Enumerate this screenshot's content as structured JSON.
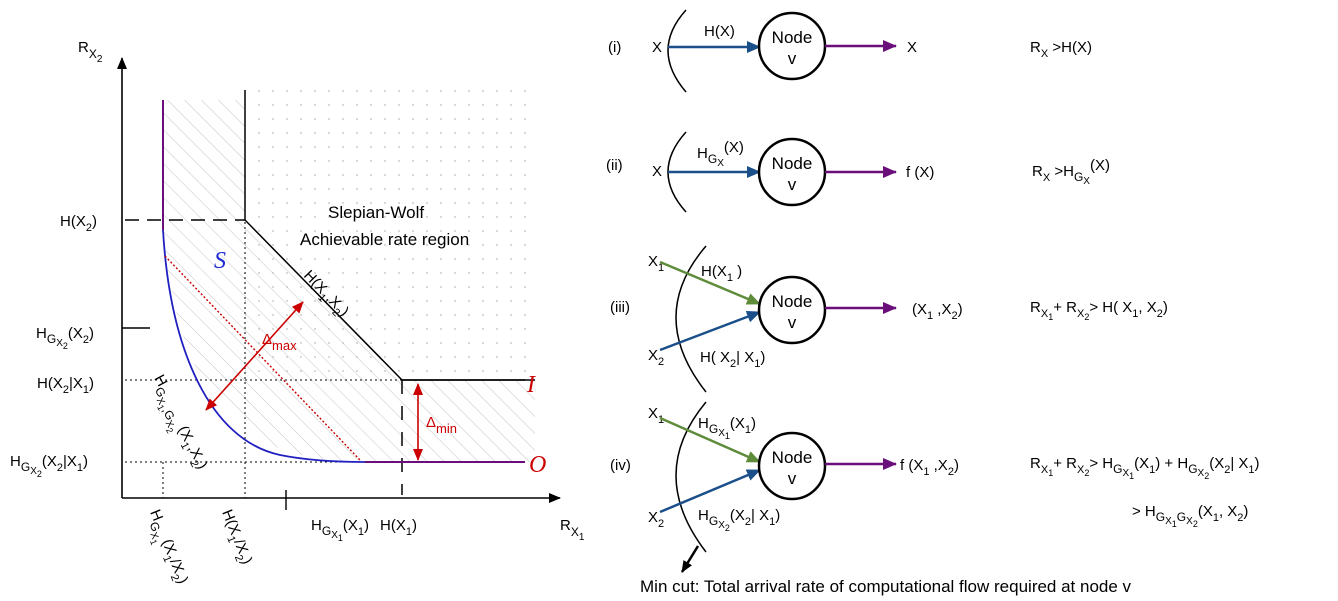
{
  "colors": {
    "blue_curve": "#2020c0",
    "purple": "#6a0f7a",
    "red": "#cc0000",
    "arrow_blue": "#1a4f8a",
    "arrow_green": "#5e8c3a"
  },
  "left": {
    "y_axis_label": "R",
    "y_axis_sub": "X",
    "y_axis_subsub": "2",
    "x_axis_label": "R",
    "x_axis_sub": "X",
    "x_axis_subsub": "1",
    "region_title_1": "Slepian-Wolf",
    "region_title_2": "Achievable rate region",
    "region_S": "S",
    "region_I": "I",
    "region_O": "O",
    "diag_label": "H(X",
    "diag_sub1": "1",
    "diag_comma": ",X",
    "diag_sub2": "2",
    "diag_close": ")",
    "delta": "Δ",
    "delta_max": "max",
    "delta_min": "min",
    "y_ticks": {
      "hx2": "H(X",
      "hx2_sub": "2",
      "hx2_close": ")",
      "hg": "H",
      "hg_sub": "G",
      "hg_subsub": "X",
      "hg_subsubsub": "2",
      "hg_arg": "(X",
      "hg_arg_sub": "2",
      "hg_close": ")",
      "hcond": "H(X",
      "hcond_sub1": "2",
      "hcond_mid": "|X",
      "hcond_sub2": "1",
      "hcond_close": ")",
      "hgcond": "H",
      "hgcond_sub": "G",
      "hgcond_subsub": "X",
      "hgcond_subsubsub": "2",
      "hgcond_arg": "(X",
      "hgcond_arg_sub1": "2",
      "hgcond_mid": "|X",
      "hgcond_arg_sub2": "1",
      "hgcond_close": ")"
    },
    "x_ticks": {
      "hg1": "H",
      "hg1_sub": "G",
      "hg1_subsub": "X",
      "hg1_subsubsub": "1",
      "hg1_arg": "(X",
      "hg1_arg_sub": "1",
      "hg1_close": ")",
      "hx1": "H(X",
      "hx1_sub": "1",
      "hx1_close": ")",
      "rot1": "H",
      "rot1_sub": "G",
      "rot1_subsub": "X",
      "rot1_subsubsub": "1",
      "rot1_arg": "(X",
      "rot1_arg_sub1": "1",
      "rot1_mid": "/X",
      "rot1_arg_sub2": "2",
      "rot1_close": ")",
      "rot2": "H(X",
      "rot2_sub1": "1",
      "rot2_mid": "/X",
      "rot2_sub2": "2",
      "rot2_close": ")"
    },
    "curve_label": {
      "h": "H",
      "g1": "G",
      "x1": "X",
      "n1": "1",
      "comma": ",",
      "g2": "G",
      "x2": "X",
      "n2": "2",
      "arg": "(X",
      "a1": "1",
      "c": ",X",
      "a2": "2",
      "close": ")"
    }
  },
  "right": {
    "node_title": "Node",
    "node_v": "v",
    "rows": [
      {
        "numeral": "(i)",
        "in_label": "X",
        "edge_label": "H(X)",
        "out_label": "X",
        "cond": "R",
        "cond_sub": "X",
        "cond_rest": " >H(X)"
      },
      {
        "numeral": "(ii)",
        "in_label": "X",
        "edge_label": "H",
        "edge_sub": "G",
        "edge_subsub": "X",
        "edge_arg": "(X)",
        "out_label": "f (X)",
        "cond": "R",
        "cond_sub": "X",
        "cond_rest": " >H",
        "cond_g": "G",
        "cond_gx": "X",
        "cond_arg": "(X)"
      },
      {
        "numeral": "(iii)",
        "in1": "X",
        "in1_sub": "1",
        "in2": "X",
        "in2_sub": "2",
        "edge1": "H(X",
        "edge1_sub": "1",
        "edge1_close": " )",
        "edge2": "H( X",
        "edge2_sub1": "2",
        "edge2_mid": "| X",
        "edge2_sub2": "1",
        "edge2_close": ")",
        "out_label": "(X",
        "out_sub1": "1",
        "out_mid": " ,X",
        "out_sub2": "2",
        "out_close": ")",
        "cond": "R",
        "cond_x": "X",
        "cond_1": "1",
        "cond_plus": "+ R",
        "cond_x2": "X",
        "cond_2": "2",
        "cond_rest": "> H( X",
        "cond_r1": "1",
        "cond_rmid": ", X",
        "cond_r2": "2",
        "cond_rclose": ")"
      },
      {
        "numeral": "(iv)",
        "in1": "X",
        "in1_sub": "1",
        "in2": "X",
        "in2_sub": "2",
        "edge1": "H",
        "edge1_g": "G",
        "edge1_x": "X",
        "edge1_n": "1",
        "edge1_arg": "(X",
        "edge1_argn": "1",
        "edge1_close": ")",
        "edge2": "H",
        "edge2_g": "G",
        "edge2_x": "X",
        "edge2_n": "2",
        "edge2_arg": "(X",
        "edge2_a1": "2",
        "edge2_mid": "| X",
        "edge2_a2": "1",
        "edge2_close": ")",
        "out_label": "f (X",
        "out_sub1": "1",
        "out_mid": " ,X",
        "out_sub2": "2",
        "out_close": ")",
        "cond_line1": "R",
        "cond_line2_pre": ">",
        "min_cut": "Min cut: Total arrival rate of computational flow required at node v"
      }
    ]
  }
}
